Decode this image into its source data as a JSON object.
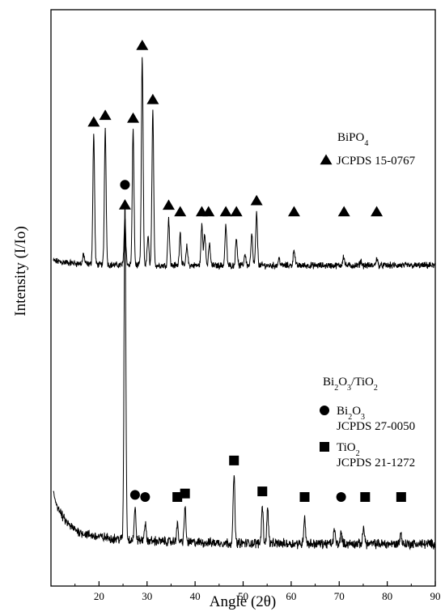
{
  "chart_data": {
    "type": "line",
    "title": "",
    "xlabel": "Angle (2θ)",
    "ylabel": "Intensity (I/Io)",
    "xlim": [
      10,
      90
    ],
    "xticks": [
      20,
      30,
      40,
      50,
      60,
      70,
      80,
      90
    ],
    "y_tick_labels": false,
    "grid": false,
    "series": [
      {
        "name": "BiPO4",
        "baseline": 0.0,
        "peaks": [
          {
            "x": 16.8,
            "h": 0.04
          },
          {
            "x": 18.9,
            "h": 0.55
          },
          {
            "x": 21.3,
            "h": 0.58
          },
          {
            "x": 25.4,
            "h": 0.2
          },
          {
            "x": 27.1,
            "h": 0.57
          },
          {
            "x": 29.0,
            "h": 0.88
          },
          {
            "x": 30.2,
            "h": 0.12
          },
          {
            "x": 31.2,
            "h": 0.65
          },
          {
            "x": 34.5,
            "h": 0.2
          },
          {
            "x": 36.9,
            "h": 0.14
          },
          {
            "x": 38.3,
            "h": 0.08
          },
          {
            "x": 41.4,
            "h": 0.17
          },
          {
            "x": 42.0,
            "h": 0.14
          },
          {
            "x": 43.0,
            "h": 0.09
          },
          {
            "x": 46.4,
            "h": 0.17
          },
          {
            "x": 48.6,
            "h": 0.12
          },
          {
            "x": 50.4,
            "h": 0.05
          },
          {
            "x": 51.8,
            "h": 0.13
          },
          {
            "x": 52.8,
            "h": 0.22
          },
          {
            "x": 57.5,
            "h": 0.03
          },
          {
            "x": 60.6,
            "h": 0.07
          },
          {
            "x": 70.9,
            "h": 0.04
          },
          {
            "x": 74.5,
            "h": 0.02
          },
          {
            "x": 77.8,
            "h": 0.03
          }
        ]
      },
      {
        "name": "Bi2O3/TiO2",
        "baseline": 0.0,
        "peaks": [
          {
            "x": 25.4,
            "h": 1.0
          },
          {
            "x": 27.5,
            "h": 0.09
          },
          {
            "x": 29.6,
            "h": 0.05
          },
          {
            "x": 36.3,
            "h": 0.05
          },
          {
            "x": 37.9,
            "h": 0.1
          },
          {
            "x": 48.1,
            "h": 0.2
          },
          {
            "x": 54.0,
            "h": 0.11
          },
          {
            "x": 55.1,
            "h": 0.1
          },
          {
            "x": 62.8,
            "h": 0.08
          },
          {
            "x": 69.0,
            "h": 0.04
          },
          {
            "x": 70.4,
            "h": 0.03
          },
          {
            "x": 75.1,
            "h": 0.05
          },
          {
            "x": 82.8,
            "h": 0.03
          }
        ]
      }
    ],
    "markers": {
      "triangle": [
        18.9,
        21.3,
        25.4,
        27.1,
        29.0,
        31.2,
        34.5,
        36.9,
        41.4,
        42.8,
        46.4,
        48.6,
        52.8,
        60.6,
        71.0,
        77.8
      ],
      "circle": [
        25.4,
        27.5,
        29.6,
        70.4
      ],
      "square": [
        36.3,
        37.9,
        48.1,
        54.0,
        62.8,
        75.4,
        82.9
      ]
    },
    "legend": [
      {
        "group": "BiPO4",
        "title": {
          "main": "BiPO",
          "sub": "4"
        },
        "entries": [
          {
            "marker": "triangle",
            "label": "JCPDS 15-0767"
          }
        ]
      },
      {
        "group": "Bi2O3/TiO2",
        "title": {
          "parts": [
            "Bi",
            "2",
            "O",
            "3",
            "/TiO",
            "2"
          ]
        },
        "entries": [
          {
            "marker": "circle",
            "name_parts": [
              "Bi",
              "2",
              "O",
              "3"
            ],
            "label": "JCPDS 27-0050"
          },
          {
            "marker": "square",
            "name_parts": [
              "TiO",
              "2"
            ],
            "label": "JCPDS 21-1272"
          }
        ]
      }
    ]
  }
}
